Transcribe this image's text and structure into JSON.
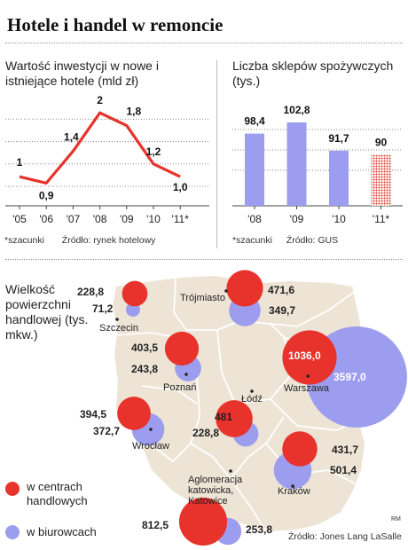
{
  "title": "Hotele i handel w remoncie",
  "chart_data": [
    {
      "type": "line",
      "title": "Wartość inwestycji w nowe i istniejące hotele (mld zł)",
      "categories": [
        "'05",
        "'06",
        "'07",
        "'08",
        "'09",
        "'10",
        "'11*"
      ],
      "value_labels": [
        "1",
        "0,9",
        "1,4",
        "2",
        "1,8",
        "1,2",
        "1,0"
      ],
      "values": [
        1.0,
        0.9,
        1.4,
        2.0,
        1.8,
        1.2,
        1.0
      ],
      "ylim": [
        0.6,
        2.1
      ],
      "grid": true,
      "footnote": "*szacunki",
      "source": "Źródło: rynek hotelowy",
      "colors": {
        "line": "#e8322c"
      }
    },
    {
      "type": "bar",
      "title": "Liczba sklepów spożywczych (tys.)",
      "categories": [
        "'08",
        "'09",
        "'10",
        "'11*"
      ],
      "value_labels": [
        "98,4",
        "102,8",
        "91,7",
        "90"
      ],
      "values": [
        98.4,
        102.8,
        91.7,
        90
      ],
      "ylim": [
        70,
        108
      ],
      "estimated_last": true,
      "grid": true,
      "footnote": "*szacunki",
      "source": "Źródło: GUS",
      "colors": {
        "bar": "#9d9df0",
        "estimate": "#e8322c"
      }
    },
    {
      "type": "bubble-map",
      "title": "Wielkość powierzchni handlowej (tys. mkw.)",
      "legend": [
        {
          "label": "w centrach handlowych",
          "color": "#e8322c"
        },
        {
          "label": "w biurowcach",
          "color": "#9d9df0"
        }
      ],
      "cities": [
        {
          "name": "Szczecin",
          "retail": 228.8,
          "retail_label": "228,8",
          "office": 71.2,
          "office_label": "71,2"
        },
        {
          "name": "Trójmiasto",
          "retail": 471.6,
          "retail_label": "471,6",
          "office": 349.7,
          "office_label": "349,7"
        },
        {
          "name": "Poznań",
          "retail": 403.5,
          "retail_label": "403,5",
          "office": 243.8,
          "office_label": "243,8"
        },
        {
          "name": "Warszawa",
          "retail": 1036.0,
          "retail_label": "1036,0",
          "office": 3597.0,
          "office_label": "3597,0"
        },
        {
          "name": "Łódź",
          "retail": 481,
          "retail_label": "481",
          "office": 228.8,
          "office_label": "228,8"
        },
        {
          "name": "Wrocław",
          "retail": 394.5,
          "retail_label": "394,5",
          "office": 372.7,
          "office_label": "372,7"
        },
        {
          "name": "Kraków",
          "retail": 431.7,
          "retail_label": "431,7",
          "office": 501.4,
          "office_label": "501,4"
        },
        {
          "name": "Aglomeracja katowicka, Katowice",
          "retail": 812.5,
          "retail_label": "812,5",
          "office": 253.8,
          "office_label": "253,8"
        }
      ],
      "source": "Źródło: Jones Lang LaSalle",
      "credit": "RM"
    }
  ],
  "colors": {
    "map_fill": "#ede4d5",
    "map_border": "#ffffff",
    "grid": "#888888"
  }
}
